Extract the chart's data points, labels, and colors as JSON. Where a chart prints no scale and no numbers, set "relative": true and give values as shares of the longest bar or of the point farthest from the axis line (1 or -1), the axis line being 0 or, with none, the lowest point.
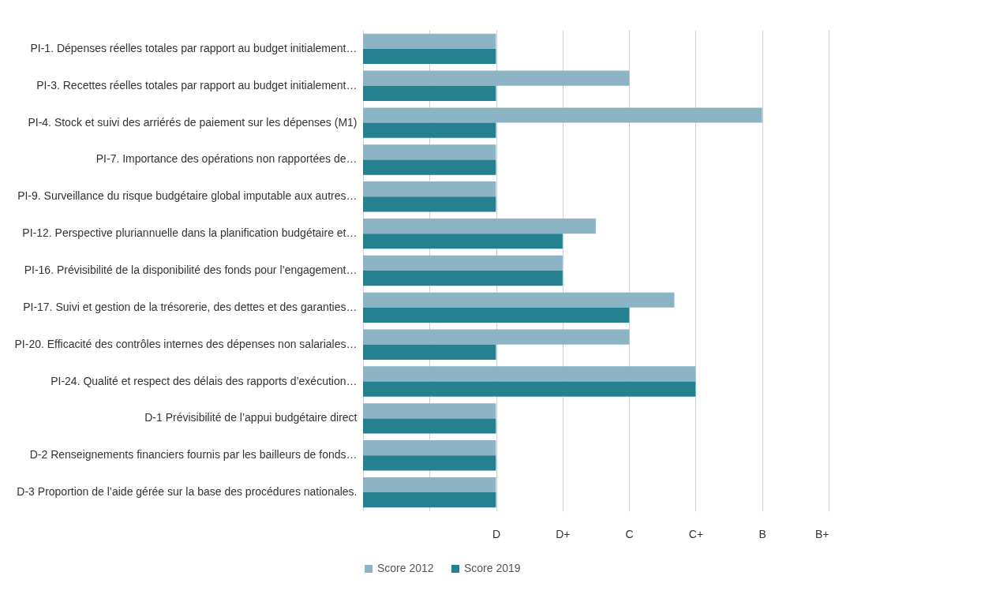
{
  "chart_data": {
    "type": "bar",
    "orientation": "horizontal",
    "relative": true,
    "categories": [
      "PI-1. Dépenses réelles totales par rapport au budget initialement…",
      "PI-3. Recettes réelles totales par rapport au budget initialement…",
      "PI-4. Stock et suivi des arriérés de paiement sur les dépenses (M1)",
      "PI-7. Importance des opérations non rapportées de…",
      "PI-9. Surveillance du risque budgétaire global imputable aux autres…",
      "PI-12. Perspective pluriannuelle dans la planification budgétaire et…",
      "PI-16. Prévisibilité de la disponibilité des fonds pour l’engagement…",
      "PI-17. Suivi et gestion de la trésorerie, des dettes et des garanties…",
      "PI-20. Efficacité des contrôles internes des dépenses non salariales…",
      "PI-24. Qualité et respect des délais des rapports d’exécution…",
      "D-1 Prévisibilité de l’appui budgétaire direct",
      "D-2 Renseignements financiers fournis par les bailleurs de fonds…",
      "D-3 Proportion de l’aide gérée sur la base des procédures nationales."
    ],
    "series": [
      {
        "name": "Score 2012",
        "color": "#8cb4c4",
        "values": [
          0.333,
          0.667,
          1,
          0.333,
          0.333,
          0.583,
          0.5,
          0.78,
          0.667,
          0.833,
          0.333,
          0.333,
          0.333
        ]
      },
      {
        "name": "Score 2019",
        "color": "#25818f",
        "values": [
          0.333,
          0.333,
          0.333,
          0.333,
          0.333,
          0.5,
          0.5,
          0.667,
          0.333,
          0.833,
          0.333,
          0.333,
          0.333
        ]
      }
    ],
    "annotations": [
      "D",
      "D+",
      "C",
      "C+",
      "B",
      "B+"
    ],
    "grid": "x",
    "legend": "bottom"
  }
}
